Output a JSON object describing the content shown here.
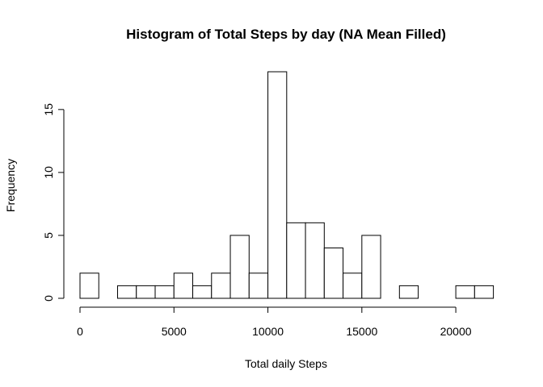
{
  "chart_data": {
    "type": "bar",
    "title": "Histogram of Total Steps by day (NA Mean Filled)",
    "xlabel": "Total daily Steps",
    "ylabel": "Frequency",
    "bin_width": 1000,
    "x_start": 0,
    "bins": [
      {
        "start": 0,
        "end": 1000,
        "count": 2
      },
      {
        "start": 1000,
        "end": 2000,
        "count": 0
      },
      {
        "start": 2000,
        "end": 3000,
        "count": 1
      },
      {
        "start": 3000,
        "end": 4000,
        "count": 1
      },
      {
        "start": 4000,
        "end": 5000,
        "count": 1
      },
      {
        "start": 5000,
        "end": 6000,
        "count": 2
      },
      {
        "start": 6000,
        "end": 7000,
        "count": 1
      },
      {
        "start": 7000,
        "end": 8000,
        "count": 2
      },
      {
        "start": 8000,
        "end": 9000,
        "count": 5
      },
      {
        "start": 9000,
        "end": 10000,
        "count": 2
      },
      {
        "start": 10000,
        "end": 11000,
        "count": 18
      },
      {
        "start": 11000,
        "end": 12000,
        "count": 6
      },
      {
        "start": 12000,
        "end": 13000,
        "count": 6
      },
      {
        "start": 13000,
        "end": 14000,
        "count": 4
      },
      {
        "start": 14000,
        "end": 15000,
        "count": 2
      },
      {
        "start": 15000,
        "end": 16000,
        "count": 5
      },
      {
        "start": 16000,
        "end": 17000,
        "count": 0
      },
      {
        "start": 17000,
        "end": 18000,
        "count": 1
      },
      {
        "start": 18000,
        "end": 19000,
        "count": 0
      },
      {
        "start": 19000,
        "end": 20000,
        "count": 0
      },
      {
        "start": 20000,
        "end": 21000,
        "count": 1
      },
      {
        "start": 21000,
        "end": 22000,
        "count": 1
      }
    ],
    "x_ticks": [
      0,
      5000,
      10000,
      15000,
      20000
    ],
    "y_ticks": [
      0,
      5,
      10,
      15
    ],
    "xlim": [
      0,
      22000
    ],
    "ylim": [
      0,
      18
    ],
    "grid": false,
    "legend": "none"
  }
}
